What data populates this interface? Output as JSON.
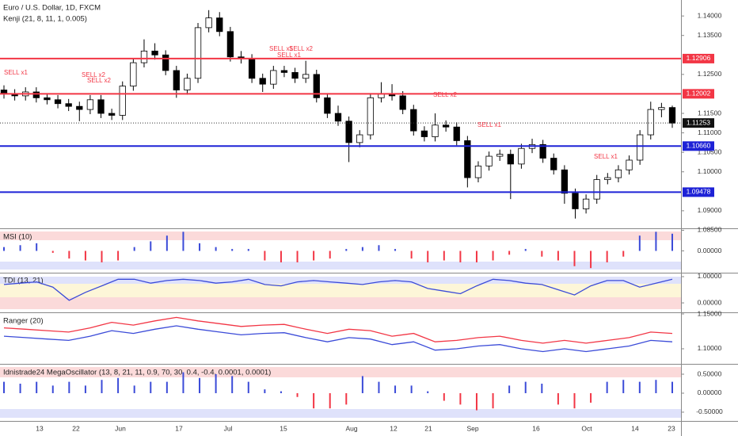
{
  "chart_data": {
    "type": "candlestick",
    "title": "Euro / U.S. Dollar, 1D, FXCM",
    "subtitle": "Kenji (21, 8, 11, 1, 0.005)",
    "ylim": [
      1.0855,
      1.1441
    ],
    "yticks": [
      {
        "value": 1.14,
        "label": "1.14000"
      },
      {
        "value": 1.135,
        "label": "1.13500"
      },
      {
        "value": 1.125,
        "label": "1.12500"
      },
      {
        "value": 1.115,
        "label": "1.11500"
      },
      {
        "value": 1.11,
        "label": "1.11000"
      },
      {
        "value": 1.105,
        "label": "1.10500"
      },
      {
        "value": 1.1,
        "label": "1.10000"
      },
      {
        "value": 1.09,
        "label": "1.09000"
      },
      {
        "value": 1.085,
        "label": "1.08500"
      }
    ],
    "xticks": [
      "13",
      "22",
      "Jun",
      "17",
      "Jul",
      "15",
      "Aug",
      "12",
      "21",
      "Sep",
      "16",
      "Oct",
      "14",
      "23"
    ],
    "candles": {
      "open": [
        1.121,
        1.12,
        1.1195,
        1.1205,
        1.119,
        1.1185,
        1.1175,
        1.1168,
        1.116,
        1.1185,
        1.115,
        1.1145,
        1.122,
        1.128,
        1.131,
        1.13,
        1.126,
        1.121,
        1.124,
        1.137,
        1.1395,
        1.136,
        1.1295,
        1.129,
        1.124,
        1.1225,
        1.126,
        1.1255,
        1.124,
        1.125,
        1.119,
        1.115,
        1.113,
        1.1075,
        1.1095,
        1.119,
        1.12,
        1.1195,
        1.116,
        1.1105,
        1.109,
        1.112,
        1.1115,
        1.108,
        1.0985,
        1.1015,
        1.104,
        1.1045,
        1.102,
        1.106,
        1.107,
        1.1035,
        1.1005,
        1.0945,
        1.0905,
        1.093,
        1.098,
        1.0985,
        1.1005,
        1.103,
        1.1095,
        1.116,
        1.1165
      ],
      "high": [
        1.1222,
        1.1212,
        1.1217,
        1.1217,
        1.1202,
        1.1197,
        1.1187,
        1.118,
        1.1197,
        1.1197,
        1.1162,
        1.1232,
        1.1292,
        1.134,
        1.133,
        1.1312,
        1.1272,
        1.1252,
        1.1382,
        1.1415,
        1.141,
        1.1372,
        1.131,
        1.1302,
        1.1252,
        1.1272,
        1.1272,
        1.1267,
        1.1285,
        1.1262,
        1.1202,
        1.117,
        1.1142,
        1.1107,
        1.1202,
        1.123,
        1.1225,
        1.1207,
        1.1172,
        1.1117,
        1.115,
        1.1132,
        1.1127,
        1.1092,
        1.1027,
        1.1052,
        1.1057,
        1.1057,
        1.1072,
        1.1085,
        1.1082,
        1.1047,
        1.1017,
        1.0957,
        1.0942,
        1.0992,
        1.0997,
        1.1017,
        1.1042,
        1.1107,
        1.118,
        1.1177,
        1.117
      ],
      "low": [
        1.1188,
        1.1183,
        1.1183,
        1.1178,
        1.1173,
        1.1163,
        1.1156,
        1.113,
        1.1148,
        1.1138,
        1.1133,
        1.1133,
        1.1208,
        1.1268,
        1.1288,
        1.1248,
        1.119,
        1.1198,
        1.1228,
        1.1358,
        1.1348,
        1.1283,
        1.1278,
        1.1228,
        1.1205,
        1.1213,
        1.1243,
        1.1228,
        1.1228,
        1.1178,
        1.1138,
        1.1118,
        1.1025,
        1.1063,
        1.1083,
        1.1178,
        1.1183,
        1.1148,
        1.1093,
        1.1078,
        1.1078,
        1.1103,
        1.1068,
        1.096,
        1.0973,
        1.1003,
        1.1028,
        1.093,
        1.1008,
        1.1048,
        1.1023,
        1.0993,
        1.0918,
        1.088,
        1.0893,
        1.0918,
        1.0968,
        1.0973,
        1.0993,
        1.1018,
        1.1083,
        1.114,
        1.1113
      ],
      "close": [
        1.12,
        1.1195,
        1.1205,
        1.119,
        1.1185,
        1.1175,
        1.1168,
        1.116,
        1.1185,
        1.115,
        1.1145,
        1.122,
        1.128,
        1.131,
        1.13,
        1.126,
        1.121,
        1.124,
        1.137,
        1.1395,
        1.136,
        1.1295,
        1.129,
        1.124,
        1.1225,
        1.126,
        1.1255,
        1.124,
        1.125,
        1.119,
        1.115,
        1.113,
        1.1075,
        1.1095,
        1.119,
        1.12,
        1.1195,
        1.116,
        1.1105,
        1.109,
        1.112,
        1.1115,
        1.108,
        1.0985,
        1.1015,
        1.104,
        1.1045,
        1.102,
        1.106,
        1.107,
        1.1035,
        1.1005,
        1.0945,
        1.0905,
        1.093,
        1.098,
        1.0985,
        1.1005,
        1.103,
        1.1095,
        1.116,
        1.1165,
        1.1125
      ]
    },
    "up_color": "#ffffff",
    "down_color": "#000000",
    "levels": [
      {
        "value": 1.12906,
        "label": "1.12906"
      },
      {
        "value": 1.12002,
        "label": "1.12002"
      },
      {
        "value": 1.1066,
        "label": "1.10660"
      },
      {
        "value": 1.09478,
        "label": "1.09478"
      }
    ],
    "level_colors": [
      "#f23645",
      "#f23645",
      "#1e22d6",
      "#1e22d6"
    ],
    "last_price": {
      "value": 1.11253,
      "label": "1.11253"
    },
    "annotations": [
      "SELL x1",
      "SELL x2",
      "SELL x2",
      "SELL x1",
      "SELL x2",
      "SELL x1",
      "SELL x2",
      "SELL x1",
      "SELL x1"
    ],
    "panels": [
      {
        "title": "MSI (10)",
        "type": "histogram",
        "ylim": [
          -1.1,
          1.1
        ],
        "yticks": [
          {
            "value": 0,
            "label": "0.00000"
          }
        ],
        "values": [
          0.2,
          0.3,
          0.4,
          -0.1,
          -0.4,
          -0.5,
          -0.6,
          -0.5,
          0.2,
          0.5,
          0.8,
          1.0,
          0.4,
          0.2,
          0.1,
          0.1,
          -0.5,
          -0.6,
          -0.6,
          -0.5,
          -0.4,
          0.1,
          0.2,
          0.3,
          0.1,
          -0.4,
          -0.6,
          -0.5,
          -0.6,
          -0.6,
          -0.5,
          -0.2,
          0.1,
          -0.3,
          -0.5,
          -0.8,
          -0.9,
          -0.6,
          -0.3,
          0.8,
          1.0,
          0.9
        ]
      },
      {
        "title": "TDI (13, 21)",
        "type": "line",
        "ylim": [
          -0.33,
          1.12
        ],
        "yticks": [
          {
            "value": 1,
            "label": "1.00000"
          },
          {
            "value": 0,
            "label": "0.00000"
          }
        ],
        "series": [
          {
            "color": "#3b4bd8",
            "values": [
              0.7,
              0.75,
              0.8,
              0.6,
              0.1,
              0.4,
              0.65,
              0.9,
              0.9,
              0.75,
              0.85,
              0.9,
              0.85,
              0.75,
              0.8,
              0.9,
              0.7,
              0.65,
              0.8,
              0.85,
              0.8,
              0.75,
              0.7,
              0.8,
              0.85,
              0.8,
              0.55,
              0.45,
              0.35,
              0.65,
              0.9,
              0.85,
              0.75,
              0.7,
              0.5,
              0.3,
              0.65,
              0.85,
              0.85,
              0.6,
              0.75,
              0.9
            ]
          }
        ]
      },
      {
        "title": "Ranger (20)",
        "type": "line",
        "ylim": [
          1.0795,
          1.15
        ],
        "yticks": [
          {
            "value": 1.15,
            "label": "1.15000"
          },
          {
            "value": 1.1,
            "label": "1.10000"
          }
        ],
        "series": [
          {
            "color": "#f23645",
            "values": [
              1.13,
              1.128,
              1.126,
              1.124,
              1.13,
              1.138,
              1.134,
              1.14,
              1.145,
              1.14,
              1.136,
              1.132,
              1.134,
              1.135,
              1.128,
              1.122,
              1.128,
              1.126,
              1.118,
              1.122,
              1.11,
              1.112,
              1.116,
              1.118,
              1.112,
              1.108,
              1.112,
              1.108,
              1.112,
              1.116,
              1.124,
              1.122
            ]
          },
          {
            "color": "#3b4bd8",
            "values": [
              1.118,
              1.116,
              1.114,
              1.112,
              1.118,
              1.126,
              1.122,
              1.128,
              1.133,
              1.128,
              1.124,
              1.12,
              1.122,
              1.123,
              1.116,
              1.11,
              1.116,
              1.114,
              1.106,
              1.11,
              1.098,
              1.1,
              1.104,
              1.106,
              1.1,
              1.096,
              1.1,
              1.096,
              1.1,
              1.104,
              1.112,
              1.11
            ]
          }
        ]
      },
      {
        "title": "Idnistrade24 MegaOscillator (13, 8, 21, 11, 0.9, 70, 30, 0.4, -0.4, 0.0001, 0.0001)",
        "type": "histogram",
        "ylim": [
          -0.71,
          0.73
        ],
        "yticks": [
          {
            "value": 0.5,
            "label": "0.50000"
          },
          {
            "value": 0,
            "label": "0.00000"
          },
          {
            "value": -0.5,
            "label": "-0.50000"
          }
        ],
        "values": [
          0.3,
          0.25,
          0.3,
          0.2,
          0.3,
          0.2,
          0.35,
          0.4,
          0.2,
          0.3,
          0.3,
          0.55,
          0.4,
          0.5,
          0.45,
          0.3,
          0.1,
          0.05,
          -0.1,
          -0.4,
          -0.4,
          -0.3,
          0.45,
          0.3,
          0.2,
          0.2,
          0.05,
          -0.2,
          -0.3,
          -0.45,
          -0.4,
          0.2,
          0.3,
          0.25,
          -0.3,
          -0.4,
          -0.25,
          0.3,
          0.35,
          0.3,
          0.35,
          0.3
        ]
      }
    ],
    "pos_color": "#3b4bd8",
    "neg_color": "#f23645"
  }
}
